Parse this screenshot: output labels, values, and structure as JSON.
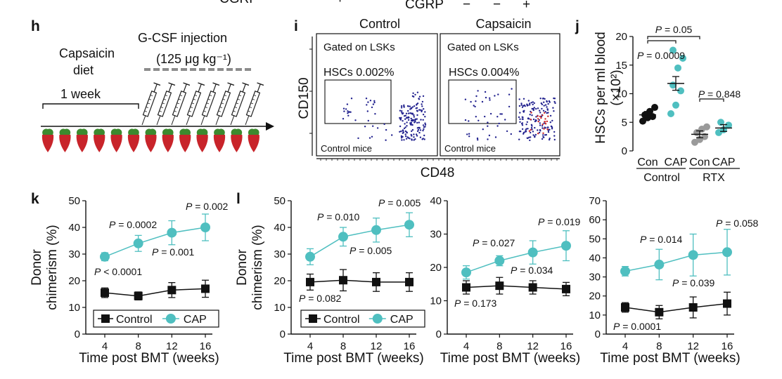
{
  "header_partial": {
    "label": "CGRP",
    "signs": [
      "+",
      "−",
      "−",
      "+"
    ]
  },
  "panel_labels": {
    "h": "h",
    "i": "i",
    "j": "j",
    "k": "k",
    "l": "l"
  },
  "panel_h": {
    "diet_label": "Capsaicin diet",
    "duration_label": "1 week",
    "injection_label": "G-CSF injection",
    "dose_label": "(125 μg kg⁻¹)",
    "syringe_count": 8,
    "pepper_count": 13,
    "colors": {
      "pepper": "#c8242a",
      "leaf": "#3c8a2e",
      "dashes": "#8c8c8c",
      "syringe": "#1f1f1f"
    }
  },
  "panel_i": {
    "col_titles": [
      "Control",
      "Capsaicin"
    ],
    "gate_text": "Gated on LSKs",
    "hsc_texts": [
      "HSCs 0.002%",
      "HSCs 0.004%"
    ],
    "footer_text": "Control mice",
    "xlabel": "CD48",
    "ylabel": "CD150",
    "colors": {
      "dots": "#23238f",
      "red_dots": "#cc2222"
    }
  },
  "chart_data": [
    {
      "id": "j",
      "type": "scatter",
      "ylabel": "HSCs per ml blood (×10²)",
      "ylim": [
        0,
        20
      ],
      "yticks": [
        0,
        5,
        10,
        15,
        20
      ],
      "categories": [
        "Con",
        "CAP",
        "Con",
        "CAP"
      ],
      "groups": [
        "Control",
        "RTX"
      ],
      "colors": [
        "#111111",
        "#4fbfc0",
        "#9a9a9a",
        "#4fbfc0"
      ],
      "series": [
        {
          "group": "Control",
          "label": "Con",
          "mean": 6.3,
          "sem": 0.6,
          "points": [
            5.2,
            5.8,
            6.0,
            6.3,
            6.9,
            7.6
          ]
        },
        {
          "group": "Control",
          "label": "CAP",
          "mean": 11.8,
          "sem": 1.2,
          "points": [
            6.5,
            8.0,
            10.5,
            11.5,
            14.5,
            16.2,
            17.6
          ]
        },
        {
          "group": "RTX",
          "label": "Con",
          "mean": 2.9,
          "sem": 0.6,
          "points": [
            1.5,
            2.0,
            2.5,
            3.2,
            3.8,
            4.2
          ]
        },
        {
          "group": "RTX",
          "label": "CAP",
          "mean": 4.0,
          "sem": 0.6,
          "points": [
            3.2,
            3.7,
            4.5,
            5.0
          ]
        }
      ],
      "annotations": [
        "P = 0.05",
        "P = 0.0009",
        "P = 0.848"
      ]
    },
    {
      "id": "k",
      "type": "line",
      "xlabel": "Time post BMT (weeks)",
      "ylabel": "Donor chimerism (%)",
      "x": [
        4,
        8,
        12,
        16
      ],
      "ylim": [
        0,
        50
      ],
      "yticks": [
        0,
        10,
        20,
        30,
        40,
        50
      ],
      "series": [
        {
          "name": "Control",
          "values": [
            15.5,
            14.3,
            16.5,
            17.0
          ],
          "err": [
            1.8,
            1.5,
            2.8,
            3.2
          ],
          "color": "#111111",
          "marker": "square"
        },
        {
          "name": "CAP",
          "values": [
            29.0,
            34.0,
            38.0,
            40.0
          ],
          "err": [
            1.5,
            3.0,
            4.5,
            5.0
          ],
          "color": "#4fbfc0",
          "marker": "circle"
        }
      ],
      "annotations": [
        "P < 0.0001",
        "P = 0.0002",
        "P = 0.001",
        "P = 0.002"
      ]
    },
    {
      "id": "l1",
      "type": "line",
      "xlabel": "Time post BMT (weeks)",
      "ylabel": "Donor chimerism (%)",
      "x": [
        4,
        8,
        12,
        16
      ],
      "ylim": [
        0,
        50
      ],
      "yticks": [
        0,
        10,
        20,
        30,
        40,
        50
      ],
      "series": [
        {
          "name": "Control",
          "values": [
            19.5,
            20.2,
            19.5,
            19.5
          ],
          "err": [
            3.0,
            4.0,
            3.5,
            3.5
          ],
          "color": "#111111",
          "marker": "square"
        },
        {
          "name": "CAP",
          "values": [
            29.0,
            36.5,
            39.0,
            41.0
          ],
          "err": [
            3.0,
            3.5,
            4.5,
            4.5
          ],
          "color": "#4fbfc0",
          "marker": "circle"
        }
      ],
      "annotations": [
        "P = 0.082",
        "P = 0.010",
        "P = 0.005",
        "P = 0.005"
      ]
    },
    {
      "id": "l2",
      "type": "line",
      "xlabel": "Time post BMT (weeks)",
      "x": [
        4,
        8,
        12,
        16
      ],
      "ylim": [
        0,
        40
      ],
      "yticks": [
        0,
        10,
        20,
        30,
        40
      ],
      "series": [
        {
          "name": "Control",
          "values": [
            14.0,
            14.5,
            14.0,
            13.5
          ],
          "err": [
            2.0,
            2.5,
            2.0,
            2.0
          ],
          "color": "#111111",
          "marker": "square"
        },
        {
          "name": "CAP",
          "values": [
            18.5,
            22.0,
            24.5,
            26.5
          ],
          "err": [
            2.0,
            1.5,
            3.5,
            4.5
          ],
          "color": "#4fbfc0",
          "marker": "circle"
        }
      ],
      "annotations": [
        "P = 0.173",
        "P = 0.027",
        "P = 0.034",
        "P = 0.019"
      ]
    },
    {
      "id": "l3",
      "type": "line",
      "xlabel": "Time post BMT (weeks)",
      "x": [
        4,
        8,
        12,
        16
      ],
      "ylim": [
        0,
        70
      ],
      "yticks": [
        0,
        10,
        20,
        30,
        40,
        50,
        60,
        70
      ],
      "series": [
        {
          "name": "Control",
          "values": [
            14.0,
            11.5,
            14.0,
            16.0
          ],
          "err": [
            2.5,
            3.5,
            5.5,
            6.0
          ],
          "color": "#111111",
          "marker": "square"
        },
        {
          "name": "CAP",
          "values": [
            33.0,
            36.5,
            41.5,
            43.0
          ],
          "err": [
            2.5,
            8.0,
            11.0,
            12.0
          ],
          "color": "#4fbfc0",
          "marker": "circle"
        }
      ],
      "annotations": [
        "P = 0.0001",
        "P = 0.014",
        "P = 0.039",
        "P = 0.058"
      ]
    }
  ],
  "legend": {
    "entries": [
      "Control",
      "CAP"
    ]
  }
}
